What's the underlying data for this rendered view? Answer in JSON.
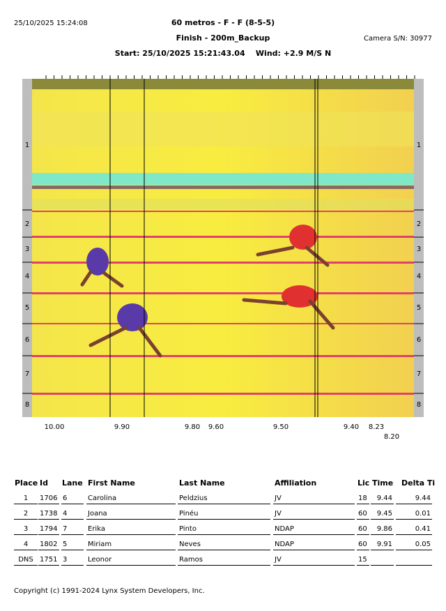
{
  "header": {
    "timestamp": "25/10/2025 15:24:08",
    "title": "60 metros - F - F (8-5-5)",
    "subtitle": "Finish - 200m_Backup",
    "camera": "Camera S/N: 30977",
    "start": "Start: 25/10/2025 15:21:43.04    Wind: +2.9 M/S N"
  },
  "photo": {
    "lanes": [
      "1",
      "2",
      "3",
      "4",
      "5",
      "6",
      "7",
      "8"
    ],
    "time_labels": [
      "10.00",
      "9.90",
      "9.80",
      "9.60",
      "9.50",
      "9.40",
      "8.23",
      "8.20"
    ]
  },
  "table": {
    "columns": [
      "Place",
      "Id",
      "Lane",
      "First Name",
      "Last Name",
      "Affiliation",
      "Lic",
      "Time",
      "Delta Ti"
    ],
    "rows": [
      [
        "1",
        "1706",
        "6",
        "Carolina",
        "Peldzius",
        "JV",
        "18",
        "9.44",
        "9.44"
      ],
      [
        "2",
        "1738",
        "4",
        "Joana",
        "Pinéu",
        "JV",
        "60",
        "9.45",
        "0.01"
      ],
      [
        "3",
        "1794",
        "7",
        "Erika",
        "Pinto",
        "NDAP",
        "60",
        "9.86",
        "0.41"
      ],
      [
        "4",
        "1802",
        "5",
        "Miriam",
        "Neves",
        "NDAP",
        "60",
        "9.91",
        "0.05"
      ],
      [
        "DNS",
        "1751",
        "3",
        "Leonor",
        "Ramos",
        "JV",
        "15"
      ]
    ]
  },
  "footer": "Copyright (c) 1991-2024 Lynx System Developers, Inc."
}
